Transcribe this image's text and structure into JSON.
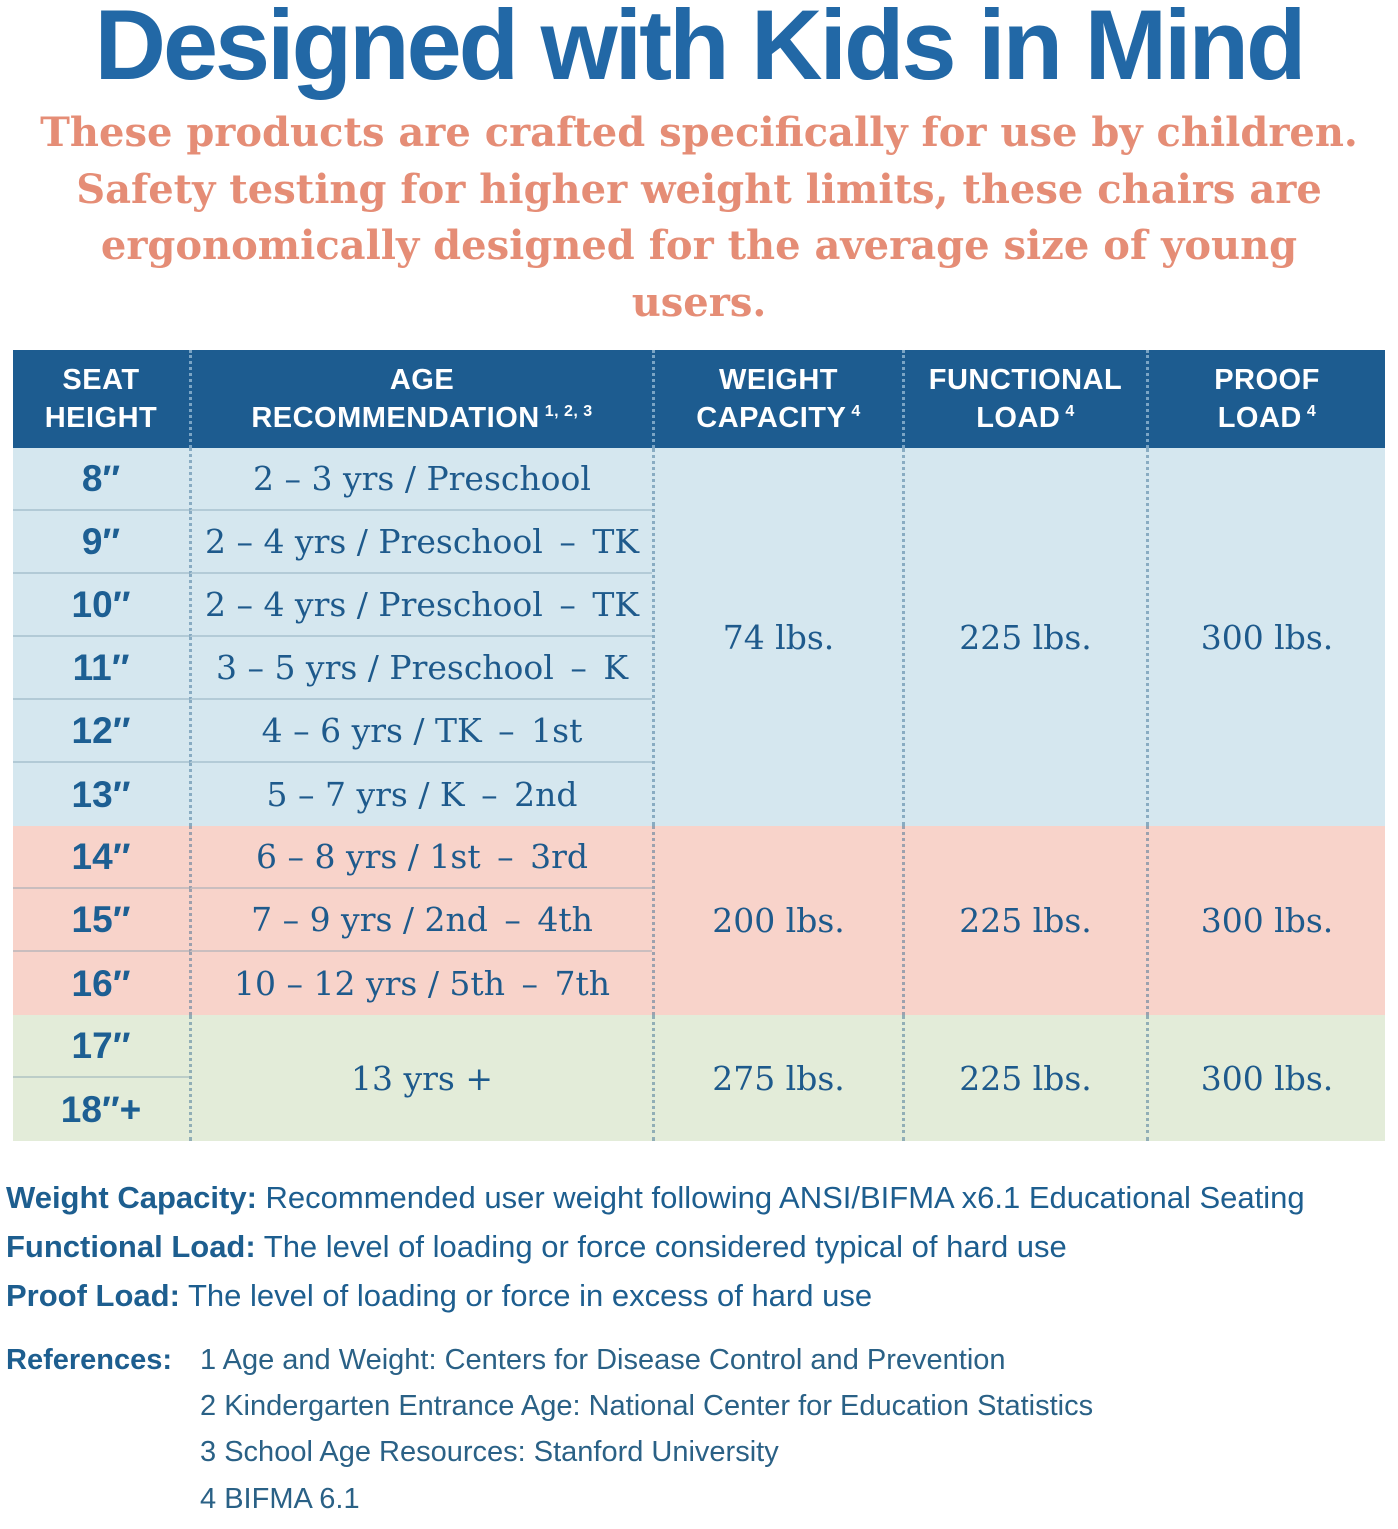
{
  "title": "Designed with Kids in Mind",
  "subtitle": {
    "line1": "These products are crafted specifically for use by children.",
    "line2": "Safety testing for higher weight limits, these chairs are",
    "line3": "ergonomically designed for the average size of young users."
  },
  "colors": {
    "title_blue": "#2268a6",
    "subtitle_salmon": "#e58d76",
    "header_bg": "#1d5c90",
    "header_text": "#ffffff",
    "row_blue": "#d5e7ef",
    "row_pink": "#f8d3ca",
    "row_green": "#e3ecd9",
    "cell_text_blue": "#1e5a8c"
  },
  "table": {
    "headers": [
      {
        "line1": "SEAT",
        "line2": "HEIGHT",
        "sup": ""
      },
      {
        "line1": "AGE",
        "line2": "RECOMMENDATION",
        "sup": "1, 2, 3"
      },
      {
        "line1": "WEIGHT",
        "line2": "CAPACITY",
        "sup": "4"
      },
      {
        "line1": "FUNCTIONAL",
        "line2": "LOAD",
        "sup": "4"
      },
      {
        "line1": "PROOF",
        "line2": "LOAD",
        "sup": "4"
      }
    ],
    "groups": [
      {
        "rows": [
          {
            "seat": "8″",
            "age": "2 – 3 yrs / Preschool"
          },
          {
            "seat": "9″",
            "age": "2 – 4 yrs / Preschool – TK"
          },
          {
            "seat": "10″",
            "age": "2 – 4 yrs / Preschool – TK"
          },
          {
            "seat": "11″",
            "age": "3 – 5 yrs / Preschool – K"
          },
          {
            "seat": "12″",
            "age": "4 – 6 yrs / TK – 1st"
          },
          {
            "seat": "13″",
            "age": "5 – 7 yrs / K – 2nd"
          }
        ],
        "weight_capacity": "74 lbs.",
        "functional_load": "225 lbs.",
        "proof_load": "300 lbs."
      },
      {
        "rows": [
          {
            "seat": "14″",
            "age": "6 – 8 yrs / 1st – 3rd"
          },
          {
            "seat": "15″",
            "age": "7 – 9 yrs / 2nd – 4th"
          },
          {
            "seat": "16″",
            "age": "10 – 12 yrs / 5th – 7th"
          }
        ],
        "weight_capacity": "200 lbs.",
        "functional_load": "225 lbs.",
        "proof_load": "300 lbs."
      },
      {
        "rows": [
          {
            "seat": "17″"
          },
          {
            "seat": "18″+"
          }
        ],
        "age_merged": "13 yrs +",
        "weight_capacity": "275 lbs.",
        "functional_load": "225 lbs.",
        "proof_load": "300 lbs."
      }
    ]
  },
  "definitions": [
    {
      "label": "Weight Capacity:",
      "text": " Recommended user weight following ANSI/BIFMA x6.1 Educational Seating"
    },
    {
      "label": "Functional Load:",
      "text": " The level of loading or force considered typical of hard use"
    },
    {
      "label": "Proof Load:",
      "text": " The level of loading or force in excess of hard use"
    }
  ],
  "references": {
    "label": "References:",
    "items": [
      "1 Age and Weight: Centers for Disease Control and Prevention",
      "2 Kindergarten Entrance Age: National Center for Education Statistics",
      "3 School Age Resources: Stanford University",
      "4 BIFMA 6.1"
    ]
  }
}
